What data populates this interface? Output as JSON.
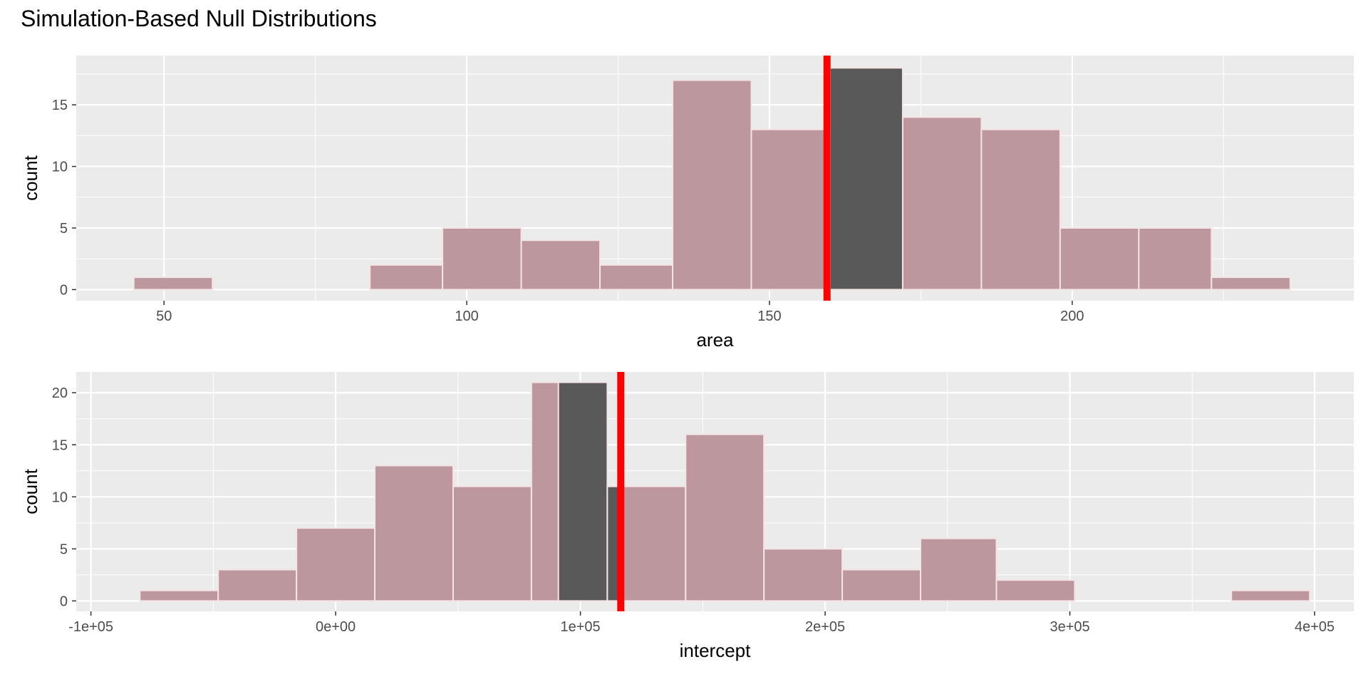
{
  "title": "Simulation-Based Null Distributions",
  "colors": {
    "panel": "#ebebeb",
    "grid": "#ffffff",
    "bar_fill": "#bc979d",
    "bar_outline": "#f4e4e6",
    "shaded_fill": "#595959",
    "obs_line": "#ff0000",
    "tick_text": "#4d4d4d"
  },
  "chart_data": [
    {
      "type": "bar",
      "xlabel": "area",
      "ylabel": "count",
      "xlim": [
        35.5,
        246.5
      ],
      "ylim": [
        -0.9,
        19
      ],
      "xticks": [
        50,
        100,
        150,
        200
      ],
      "xtick_labels": [
        "50",
        "100",
        "150",
        "200"
      ],
      "yticks": [
        0,
        5,
        10,
        15
      ],
      "ytick_labels": [
        "0",
        "5",
        "10",
        "15"
      ],
      "observed_stat": 159.5,
      "shaded_range": [
        159.5,
        172
      ],
      "bins": [
        {
          "x0": 45,
          "x1": 58,
          "count": 1
        },
        {
          "x0": 84,
          "x1": 96,
          "count": 2
        },
        {
          "x0": 96,
          "x1": 109,
          "count": 5
        },
        {
          "x0": 109,
          "x1": 122,
          "count": 4
        },
        {
          "x0": 122,
          "x1": 134,
          "count": 2
        },
        {
          "x0": 134,
          "x1": 147,
          "count": 17
        },
        {
          "x0": 147,
          "x1": 160,
          "count": 13
        },
        {
          "x0": 160,
          "x1": 172,
          "count": 18
        },
        {
          "x0": 172,
          "x1": 185,
          "count": 14
        },
        {
          "x0": 185,
          "x1": 198,
          "count": 13
        },
        {
          "x0": 198,
          "x1": 211,
          "count": 5
        },
        {
          "x0": 211,
          "x1": 223,
          "count": 5
        },
        {
          "x0": 223,
          "x1": 236,
          "count": 1
        }
      ]
    },
    {
      "type": "bar",
      "xlabel": "intercept",
      "ylabel": "count",
      "xlim": [
        -106000,
        416000
      ],
      "ylim": [
        -1,
        22
      ],
      "xticks": [
        -100000,
        0,
        100000,
        200000,
        300000,
        400000
      ],
      "xtick_labels": [
        "-1e+05",
        "0e+00",
        "1e+05",
        "2e+05",
        "3e+05",
        "4e+05"
      ],
      "yticks": [
        0,
        5,
        10,
        15,
        20
      ],
      "ytick_labels": [
        "0",
        "5",
        "10",
        "15",
        "20"
      ],
      "observed_stat": 116500,
      "shaded_range": [
        91000,
        116500
      ],
      "bins": [
        {
          "x0": -80000,
          "x1": -48000,
          "count": 1
        },
        {
          "x0": -48000,
          "x1": -16000,
          "count": 3
        },
        {
          "x0": -16000,
          "x1": 16000,
          "count": 7
        },
        {
          "x0": 16000,
          "x1": 48000,
          "count": 13
        },
        {
          "x0": 48000,
          "x1": 80000,
          "count": 11
        },
        {
          "x0": 80000,
          "x1": 111000,
          "count": 21
        },
        {
          "x0": 111000,
          "x1": 143000,
          "count": 11
        },
        {
          "x0": 143000,
          "x1": 175000,
          "count": 16
        },
        {
          "x0": 175000,
          "x1": 207000,
          "count": 5
        },
        {
          "x0": 207000,
          "x1": 239000,
          "count": 3
        },
        {
          "x0": 239000,
          "x1": 270000,
          "count": 6
        },
        {
          "x0": 270000,
          "x1": 302000,
          "count": 2
        },
        {
          "x0": 366000,
          "x1": 398000,
          "count": 1
        }
      ]
    }
  ]
}
